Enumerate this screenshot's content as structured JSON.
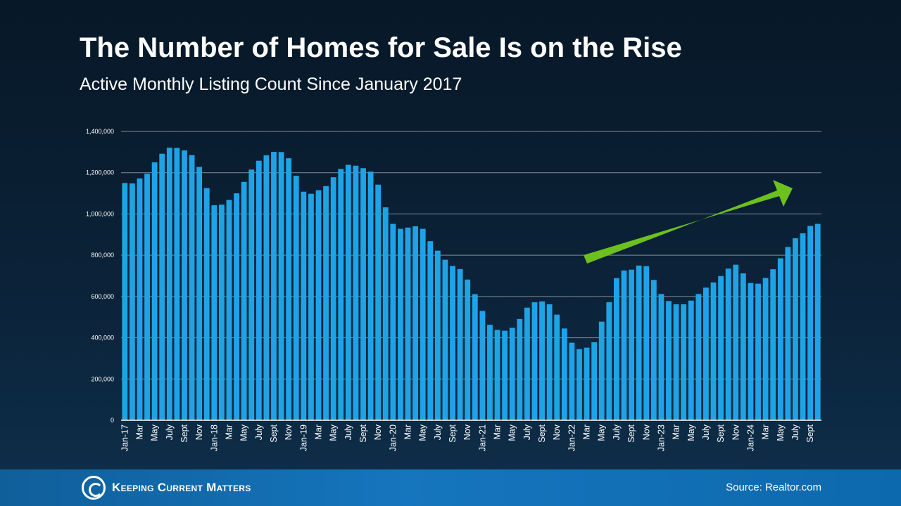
{
  "header": {
    "title": "The Number of Homes for Sale Is on the Rise",
    "subtitle": "Active Monthly Listing Count Since January 2017"
  },
  "footer": {
    "logo_text": "Keeping Current Matters",
    "source": "Source: Realtor.com"
  },
  "colors": {
    "bar": "#1ea3e6",
    "arrow": "#6cc11e",
    "grid": "#7f8c99",
    "axis": "#ffffff"
  },
  "chart_data": {
    "type": "bar",
    "title": "The Number of Homes for Sale Is on the Rise",
    "subtitle": "Active Monthly Listing Count Since January 2017",
    "ylim": [
      0,
      1400000
    ],
    "y_ticks": [
      "0",
      "200,000",
      "400,000",
      "600,000",
      "800,000",
      "1,000,000",
      "1,200,000",
      "1,400,000"
    ],
    "y_tick_values": [
      0,
      200000,
      400000,
      600000,
      800000,
      1000000,
      1200000,
      1400000
    ],
    "grid": true,
    "x_tick_labels": [
      "Jan-17",
      "Mar",
      "May",
      "July",
      "Sept",
      "Nov",
      "Jan-18",
      "Mar",
      "May",
      "July",
      "Sept",
      "Nov",
      "Jan-19",
      "Mar",
      "May",
      "July",
      "Sept",
      "Nov",
      "Jan-20",
      "Mar",
      "May",
      "July",
      "Sept",
      "Nov",
      "Jan-21",
      "Mar",
      "May",
      "July",
      "Sept",
      "Nov",
      "Jan-22",
      "Mar",
      "May",
      "July",
      "Sept",
      "Nov",
      "Jan-23",
      "Mar",
      "May",
      "July",
      "Sept",
      "Nov",
      "Jan-24",
      "Mar",
      "May",
      "July",
      "Sept"
    ],
    "tick_every": 2,
    "annotation": "upward-trend-arrow",
    "values": [
      1150000,
      1148000,
      1172000,
      1195000,
      1250000,
      1292000,
      1321000,
      1320000,
      1308000,
      1285000,
      1228000,
      1125000,
      1042000,
      1045000,
      1068000,
      1100000,
      1155000,
      1215000,
      1258000,
      1284000,
      1301000,
      1300000,
      1270000,
      1185000,
      1108000,
      1098000,
      1115000,
      1135000,
      1178000,
      1218000,
      1238000,
      1234000,
      1222000,
      1205000,
      1142000,
      1032000,
      952000,
      928000,
      934000,
      940000,
      928000,
      868000,
      822000,
      778000,
      748000,
      733000,
      682000,
      611000,
      530000,
      463000,
      438000,
      434000,
      448000,
      491000,
      546000,
      572000,
      576000,
      562000,
      512000,
      445000,
      376000,
      345000,
      352000,
      378000,
      478000,
      572000,
      689000,
      726000,
      730000,
      750000,
      747000,
      680000,
      612000,
      578000,
      562000,
      562000,
      580000,
      612000,
      643000,
      668000,
      699000,
      735000,
      754000,
      712000,
      665000,
      662000,
      690000,
      732000,
      785000,
      840000,
      882000,
      906000,
      942000,
      952000
    ]
  }
}
